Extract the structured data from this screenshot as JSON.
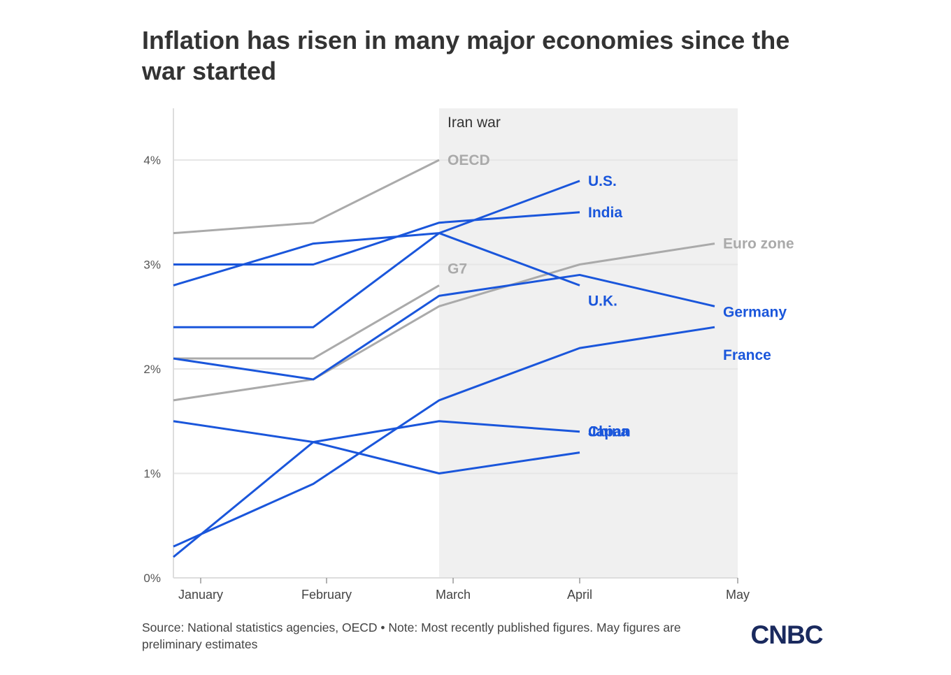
{
  "title": "Inflation has risen in many major economies since the war started",
  "source": "Source: National statistics agencies, OECD • Note: Most recently published figures. May figures are preliminary estimates",
  "brand": {
    "logo_text": "CNBC",
    "color": "#1a2a5e"
  },
  "chart_data": {
    "type": "line",
    "x_categories": [
      "January",
      "February",
      "March",
      "April",
      "May"
    ],
    "y_ticks": [
      0,
      1,
      2,
      3,
      4
    ],
    "y_tick_labels": [
      "0%",
      "1%",
      "2%",
      "3%",
      "4%"
    ],
    "ylim": [
      0,
      4.5
    ],
    "grid": true,
    "shaded_period": {
      "label": "Iran war",
      "from": "March",
      "to": "May"
    },
    "colors": {
      "highlight": "#1a56db",
      "reference": "#aaaaaa",
      "shade": "#f0f0f0",
      "grid": "#e6e6e6"
    },
    "series": [
      {
        "name": "OECD",
        "group": "reference",
        "values": [
          3.3,
          3.4,
          4.0,
          null,
          null
        ]
      },
      {
        "name": "G7",
        "group": "reference",
        "values": [
          2.1,
          2.1,
          2.8,
          null,
          null
        ]
      },
      {
        "name": "Euro zone",
        "group": "reference",
        "values": [
          1.7,
          1.9,
          2.6,
          3.0,
          3.2
        ]
      },
      {
        "name": "U.S.",
        "group": "highlight",
        "values": [
          2.8,
          3.2,
          3.3,
          3.8,
          null
        ]
      },
      {
        "name": "India",
        "group": "highlight",
        "values": [
          3.0,
          3.0,
          3.4,
          3.5,
          null
        ]
      },
      {
        "name": "U.K.",
        "group": "highlight",
        "values": [
          2.4,
          2.4,
          3.3,
          2.8,
          null
        ]
      },
      {
        "name": "Germany",
        "group": "highlight",
        "values": [
          2.1,
          1.9,
          2.7,
          2.9,
          2.6
        ]
      },
      {
        "name": "France",
        "group": "highlight",
        "values": [
          0.3,
          0.9,
          1.7,
          2.2,
          2.4
        ]
      },
      {
        "name": "Japan",
        "group": "highlight",
        "values": [
          1.5,
          1.3,
          1.0,
          1.2,
          null
        ]
      },
      {
        "name": "China",
        "group": "highlight",
        "values": [
          0.2,
          1.3,
          1.5,
          1.4,
          null
        ]
      }
    ],
    "end_labels": [
      {
        "series": "OECD",
        "text": "OECD"
      },
      {
        "series": "G7",
        "text": "G7"
      },
      {
        "series": "Euro zone",
        "text": "Euro zone"
      },
      {
        "series": "U.S.",
        "text": "U.S."
      },
      {
        "series": "India",
        "text": "India"
      },
      {
        "series": "U.K.",
        "text": "U.K."
      },
      {
        "series": "Germany",
        "text": "Germany"
      },
      {
        "series": "France",
        "text": "France"
      },
      {
        "series": "Japan",
        "text": "Japan"
      },
      {
        "series": "China",
        "text": "China"
      }
    ]
  }
}
